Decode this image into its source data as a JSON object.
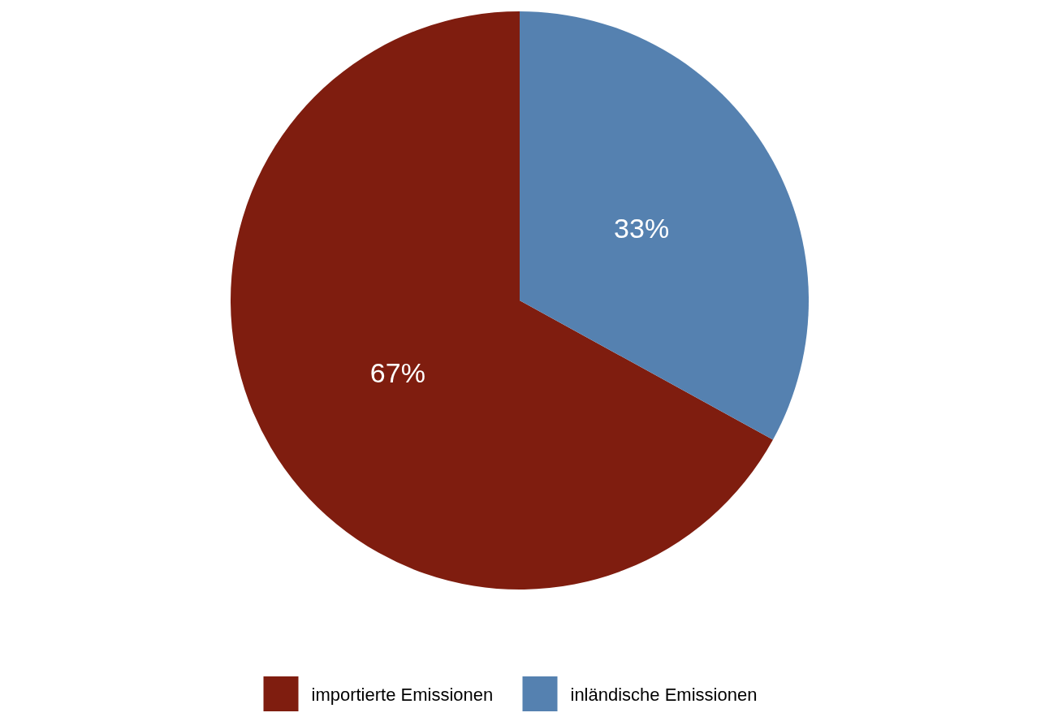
{
  "chart_data": {
    "type": "pie",
    "categories": [
      "importierte Emissionen",
      "inländische Emissionen"
    ],
    "values": [
      67,
      33
    ],
    "colors": [
      "#7f1d0f",
      "#5581b0"
    ],
    "value_labels": [
      "67%",
      "33%"
    ],
    "legend": "bottom"
  }
}
